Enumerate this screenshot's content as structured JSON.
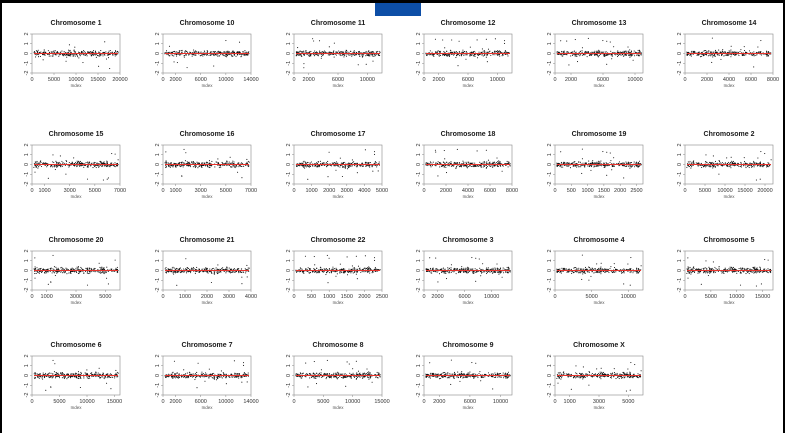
{
  "colors": {
    "background": "#000000",
    "panel": "#ffffff",
    "tab": "#0d4ea6",
    "points": "#111111",
    "fit_line": "#e8322b"
  },
  "chart_data": {
    "type": "scatter",
    "xlabel": "Index",
    "ylim": [
      -2,
      2
    ],
    "y_ticks": [
      "-2",
      "-1",
      "0",
      "1",
      "2"
    ],
    "panels": [
      {
        "title": "Chromosome 1",
        "xlim": [
          0,
          20000
        ],
        "x_ticks": [
          0,
          5000,
          10000,
          15000,
          20000
        ]
      },
      {
        "title": "Chromosome 10",
        "xlim": [
          0,
          14000
        ],
        "x_ticks": [
          0,
          2000,
          6000,
          10000,
          14000
        ]
      },
      {
        "title": "Chromosome 11",
        "xlim": [
          0,
          12000
        ],
        "x_ticks": [
          0,
          2000,
          6000,
          10000
        ]
      },
      {
        "title": "Chromosome 12",
        "xlim": [
          0,
          12000
        ],
        "x_ticks": [
          0,
          2000,
          6000,
          10000
        ]
      },
      {
        "title": "Chromosome 13",
        "xlim": [
          0,
          11000
        ],
        "x_ticks": [
          0,
          2000,
          6000,
          10000
        ]
      },
      {
        "title": "Chromosome 14",
        "xlim": [
          0,
          8000
        ],
        "x_ticks": [
          0,
          2000,
          4000,
          6000,
          8000
        ]
      },
      {
        "title": "Chromosome 15",
        "xlim": [
          0,
          7000
        ],
        "x_ticks": [
          0,
          1000,
          3000,
          5000,
          7000
        ]
      },
      {
        "title": "Chromosome 16",
        "xlim": [
          0,
          7000
        ],
        "x_ticks": [
          0,
          1000,
          3000,
          5000,
          7000
        ]
      },
      {
        "title": "Chromosome 17",
        "xlim": [
          0,
          5000
        ],
        "x_ticks": [
          0,
          1000,
          2000,
          3000,
          4000,
          5000
        ]
      },
      {
        "title": "Chromosome 18",
        "xlim": [
          0,
          8000
        ],
        "x_ticks": [
          0,
          2000,
          4000,
          6000,
          8000
        ]
      },
      {
        "title": "Chromosome 19",
        "xlim": [
          0,
          2700
        ],
        "x_ticks": [
          0,
          500,
          1000,
          1500,
          2000,
          2500
        ]
      },
      {
        "title": "Chromosome 2",
        "xlim": [
          0,
          22000
        ],
        "x_ticks": [
          0,
          5000,
          10000,
          15000,
          20000
        ]
      },
      {
        "title": "Chromosome 20",
        "xlim": [
          0,
          6000
        ],
        "x_ticks": [
          0,
          1000,
          3000,
          5000
        ]
      },
      {
        "title": "Chromosome 21",
        "xlim": [
          0,
          4000
        ],
        "x_ticks": [
          0,
          1000,
          2000,
          3000,
          4000
        ]
      },
      {
        "title": "Chromosome 22",
        "xlim": [
          0,
          2500
        ],
        "x_ticks": [
          0,
          500,
          1000,
          1500,
          2000,
          2500
        ]
      },
      {
        "title": "Chromosome 3",
        "xlim": [
          0,
          13000
        ],
        "x_ticks": [
          0,
          2000,
          6000,
          10000
        ]
      },
      {
        "title": "Chromosome 4",
        "xlim": [
          0,
          12000
        ],
        "x_ticks": [
          0,
          5000,
          10000
        ]
      },
      {
        "title": "Chromosome 5",
        "xlim": [
          0,
          17000
        ],
        "x_ticks": [
          0,
          5000,
          10000,
          15000
        ]
      },
      {
        "title": "Chromosome 6",
        "xlim": [
          0,
          16000
        ],
        "x_ticks": [
          0,
          5000,
          10000,
          15000
        ]
      },
      {
        "title": "Chromosome 7",
        "xlim": [
          0,
          14000
        ],
        "x_ticks": [
          0,
          2000,
          6000,
          10000,
          14000
        ]
      },
      {
        "title": "Chromosome 8",
        "xlim": [
          0,
          15000
        ],
        "x_ticks": [
          0,
          5000,
          10000,
          15000
        ]
      },
      {
        "title": "Chromosome 9",
        "xlim": [
          0,
          11500
        ],
        "x_ticks": [
          0,
          2000,
          6000,
          10000
        ]
      },
      {
        "title": "Chromosome X",
        "xlim": [
          0,
          6000
        ],
        "x_ticks": [
          0,
          1000,
          3000,
          5000
        ]
      }
    ]
  }
}
